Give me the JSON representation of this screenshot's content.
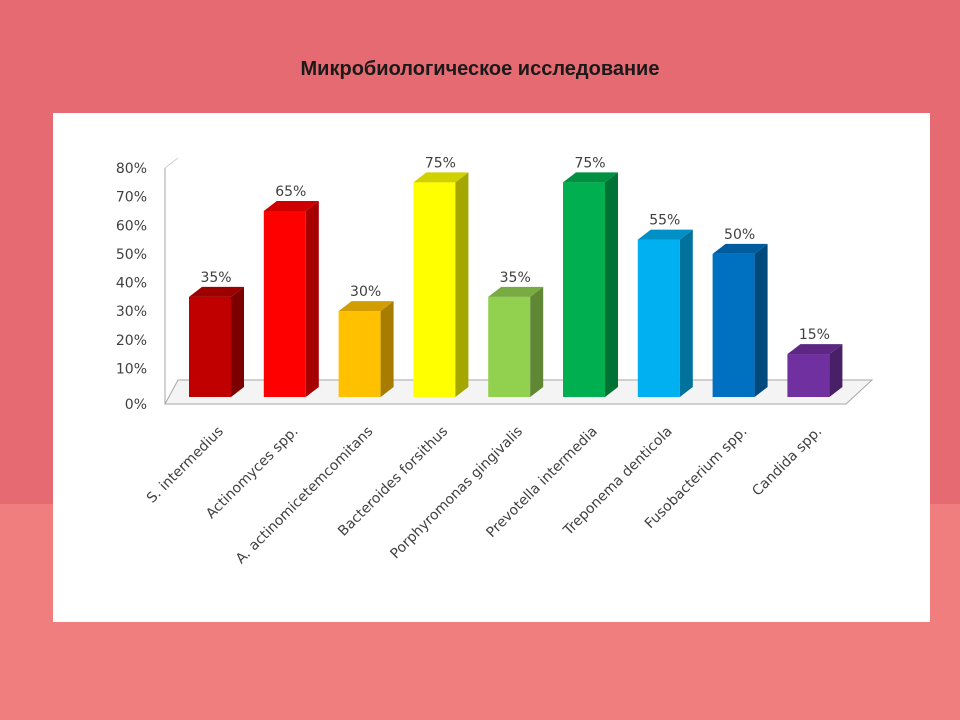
{
  "slide": {
    "title": "Микробиологическое исследование"
  },
  "colors": {
    "background_top": "#e56a72",
    "background_bottom": "#f07e7e",
    "panel": "#ffffff"
  },
  "chart_data": {
    "type": "bar",
    "style": "3d-column",
    "title": "",
    "xlabel": "",
    "ylabel": "",
    "ylim": [
      0,
      80
    ],
    "y_ticks": [
      "0%",
      "10%",
      "20%",
      "30%",
      "40%",
      "50%",
      "60%",
      "70%",
      "80%"
    ],
    "grid": false,
    "legend": "none",
    "categories": [
      "S. intermedius",
      "Actinomyces spp.",
      "A. actinomicetemcomitans",
      "Bacteroides forsithus",
      "Porphyromonas gingivalis",
      "Prevotella intermedia",
      "Treponema denticola",
      "Fusobacterium spp.",
      "Candida spp."
    ],
    "values": [
      35,
      65,
      30,
      75,
      35,
      75,
      55,
      50,
      15
    ],
    "data_labels": [
      "35%",
      "65%",
      "30%",
      "75%",
      "35%",
      "75%",
      "55%",
      "50%",
      "15%"
    ],
    "bar_colors": [
      "#c00000",
      "#ff0000",
      "#ffc000",
      "#ffff00",
      "#92d050",
      "#00b050",
      "#00b0f0",
      "#0070c0",
      "#7030a0"
    ]
  }
}
